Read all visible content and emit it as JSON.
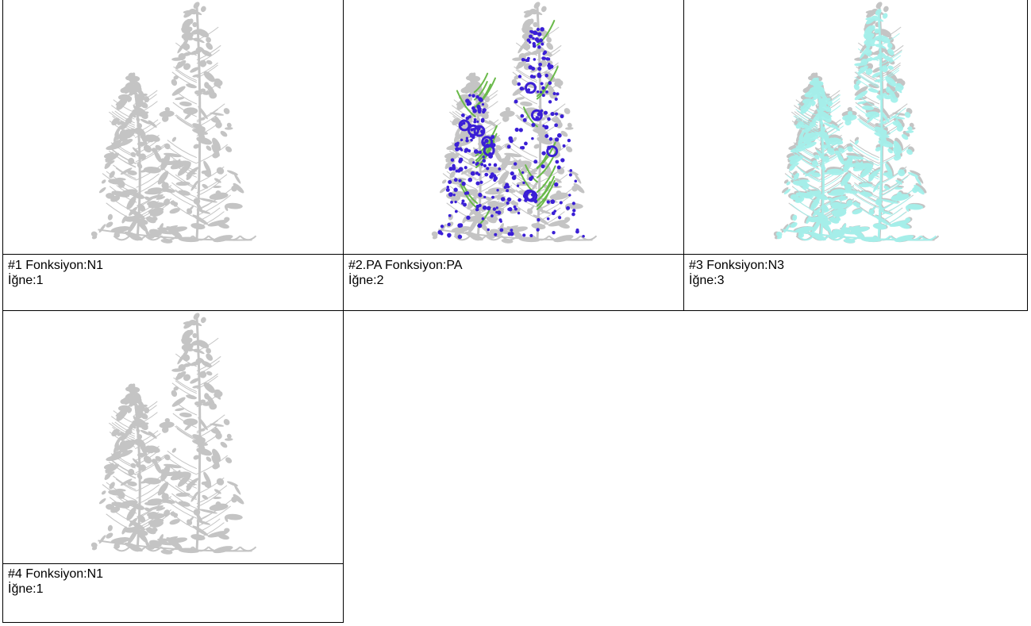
{
  "cells": [
    {
      "title": "#1 Fonksiyon:N1",
      "needle": "İğne:1",
      "accent": ""
    },
    {
      "title": "#2.PA Fonksiyon:PA",
      "needle": "İğne:2",
      "accent": "#3a1fd6"
    },
    {
      "title": "#3 Fonksiyon:N3",
      "needle": "İğne:3",
      "accent": "#5ee0d6"
    },
    {
      "title": "#4 Fonksiyon:N1",
      "needle": "İğne:1",
      "accent": ""
    }
  ],
  "colors": {
    "base": "#c4c4c4",
    "leaf": "#6aba4a",
    "blossom": "#3a1fd6",
    "stitch": "#5ee0d6"
  }
}
